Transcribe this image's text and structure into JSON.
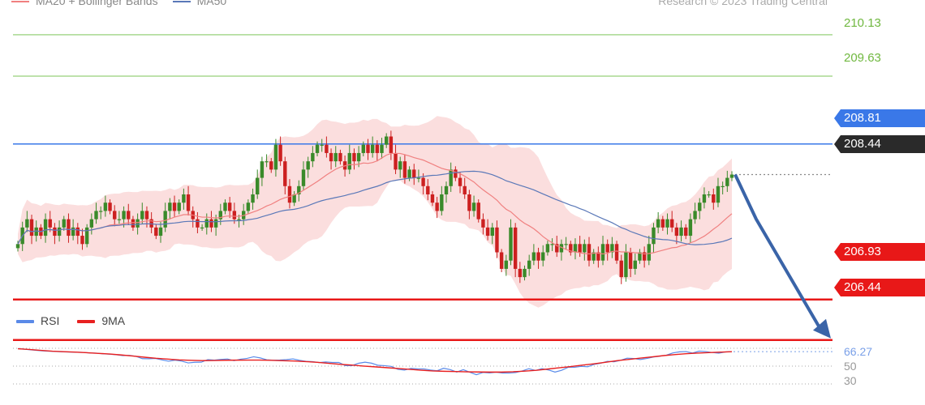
{
  "legend": {
    "ma20_bb": "MA20 + Bollinger Bands",
    "ma50": "MA50",
    "credit": "Research © 2023 Trading Central"
  },
  "levels": {
    "r3": "210.13",
    "r2": "209.63",
    "r1": "208.81",
    "last": "208.44",
    "s1": "206.93",
    "s2": "206.44"
  },
  "rsi_panel": {
    "rsi_label": "RSI",
    "ma9_label": "9MA",
    "value": "66.27",
    "tick_50": "50",
    "tick_30": "30"
  },
  "colors": {
    "bull": "#3a8a2a",
    "bear": "#cc2020",
    "ma20": "#f08080",
    "ma50": "#5a78b8",
    "bands": "#fbdada",
    "resistance_green": "#a8d890",
    "r1_blue": "#3a78e8",
    "support_red": "#e81818",
    "last_bg": "#2a2a2a",
    "arrow": "#3a64a8",
    "rsi": "#5a8ae8",
    "rsi_ma": "#e82020"
  },
  "chart_data": {
    "type": "candlestick",
    "y_range": [
      205.85,
      210.55
    ],
    "horizontal_levels": [
      210.13,
      209.63,
      208.81,
      208.44,
      206.93,
      206.44
    ],
    "forecast": {
      "from": 208.44,
      "via": 207.9,
      "to": 206.44
    },
    "closes": [
      207.6,
      207.8,
      207.9,
      207.7,
      207.8,
      207.7,
      207.9,
      207.8,
      207.7,
      207.8,
      207.9,
      207.7,
      207.8,
      207.7,
      207.6,
      207.8,
      207.9,
      208.0,
      208.0,
      208.1,
      208.0,
      207.9,
      207.9,
      208.0,
      207.9,
      207.8,
      207.9,
      208.0,
      207.9,
      207.8,
      207.7,
      207.8,
      208.0,
      208.1,
      208.0,
      208.1,
      208.2,
      208.0,
      207.9,
      207.8,
      207.8,
      207.9,
      207.8,
      207.9,
      208.0,
      208.1,
      208.0,
      207.9,
      207.9,
      208.0,
      208.1,
      208.2,
      208.4,
      208.6,
      208.6,
      208.5,
      208.8,
      208.6,
      208.3,
      208.1,
      208.2,
      208.3,
      208.5,
      208.6,
      208.7,
      208.8,
      208.8,
      208.7,
      208.6,
      208.7,
      208.6,
      208.5,
      208.7,
      208.6,
      208.7,
      208.8,
      208.7,
      208.8,
      208.7,
      208.8,
      208.9,
      208.7,
      208.5,
      208.6,
      208.4,
      208.5,
      208.4,
      208.4,
      208.3,
      208.2,
      208.1,
      208.0,
      208.2,
      208.3,
      208.5,
      208.4,
      208.3,
      208.2,
      208.0,
      208.1,
      207.9,
      207.8,
      207.7,
      207.8,
      207.5,
      207.3,
      207.4,
      207.8,
      207.3,
      207.2,
      207.3,
      207.4,
      207.5,
      207.4,
      207.5,
      207.6,
      207.6,
      207.5,
      207.6,
      207.6,
      207.5,
      207.6,
      207.5,
      207.6,
      207.4,
      207.5,
      207.4,
      207.6,
      207.5,
      207.6,
      207.4,
      207.2,
      207.5,
      207.3,
      207.4,
      207.5,
      207.4,
      207.6,
      207.8,
      207.9,
      207.8,
      207.9,
      207.8,
      207.7,
      207.8,
      207.7,
      207.9,
      208.0,
      208.1,
      208.2,
      208.2,
      208.1,
      208.3,
      208.3,
      208.4,
      208.44
    ],
    "rsi": {
      "values": [
        69.7,
        69.0,
        68.3,
        67.6,
        67.0,
        66.7,
        66.3,
        66.0,
        65.8,
        65.6,
        65.4,
        64.8,
        64.6,
        63.8,
        63.4,
        62.8,
        61.8,
        62.1,
        61.1,
        58.4,
        58.3,
        58.6,
        57.0,
        55.5,
        56.7,
        55.6,
        53.6,
        54.3,
        54.4,
        57.3,
        56.7,
        57.5,
        58.0,
        56.1,
        57.8,
        58.7,
        60.5,
        59.2,
        57.1,
        56.6,
        56.8,
        57.3,
        58.1,
        56.5,
        55.4,
        55.0,
        54.0,
        54.7,
        54.1,
        54.1,
        50.6,
        50.6,
        53.2,
        54.4,
        53.3,
        50.9,
        50.5,
        49.7,
        46.4,
        45.6,
        47.4,
        46.9,
        46.8,
        45.6,
        44.8,
        47.6,
        46.1,
        43.3,
        46.0,
        43.1,
        40.4,
        42.9,
        42.4,
        43.1,
        42.2,
        42.2,
        42.8,
        44.6,
        47.1,
        45.1,
        47.2,
        45.7,
        43.3,
        45.3,
        48.7,
        48.7,
        49.7,
        49.3,
        52.0,
        53.3,
        55.4,
        54.9,
        56.5,
        58.9,
        58.6,
        57.4,
        58.6,
        60.2,
        61.1,
        62.3,
        64.8,
        66.0,
        66.3,
        64.7,
        66.8,
        66.3,
        65.3,
        64.5,
        65.9,
        66.3
      ],
      "ma9": [
        69.5,
        68.7,
        67.7,
        66.8,
        66.2,
        65.7,
        65.1,
        64.3,
        63.6,
        62.5,
        61.3,
        60.0,
        58.8,
        57.9,
        57.0,
        56.5,
        56.2,
        56.3,
        56.6,
        56.7,
        56.8,
        56.8,
        56.5,
        56.1,
        55.7,
        55.1,
        54.3,
        53.1,
        52.0,
        51.2,
        50.1,
        49.2,
        48.3,
        47.3,
        46.4,
        45.4,
        44.6,
        44.2,
        43.9,
        43.6,
        43.4,
        43.3,
        43.3,
        43.7,
        44.4,
        45.3,
        46.7,
        48.1,
        49.5,
        51.1,
        52.6,
        54.3,
        56.1,
        57.4,
        58.9,
        60.3,
        61.7,
        62.9,
        63.9,
        64.6,
        65.2,
        65.7,
        66.2
      ],
      "reference_lines": [
        70,
        50,
        30
      ]
    }
  }
}
